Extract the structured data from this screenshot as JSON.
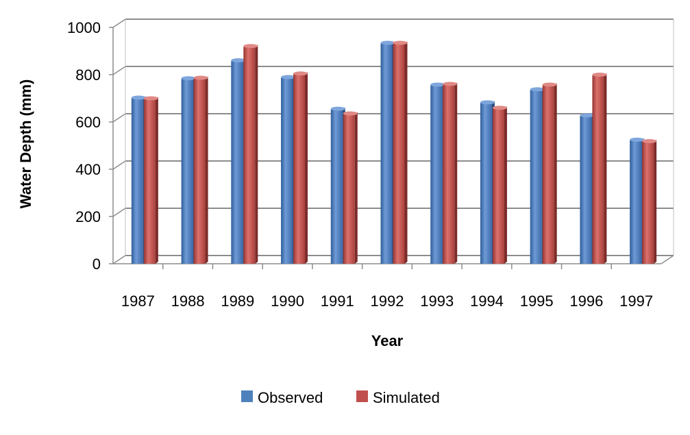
{
  "chart_data": {
    "type": "bar",
    "title": "",
    "xlabel": "Year",
    "ylabel": "Water Depth (mm)",
    "ylim": [
      0,
      1000
    ],
    "yticks": [
      0,
      200,
      400,
      600,
      800,
      1000
    ],
    "grid": true,
    "legend_position": "bottom",
    "categories": [
      "1987",
      "1988",
      "1989",
      "1990",
      "1991",
      "1992",
      "1993",
      "1994",
      "1995",
      "1996",
      "1997"
    ],
    "series": [
      {
        "name": "Observed",
        "color": "#4f81bd",
        "values": [
          700,
          782,
          858,
          787,
          653,
          932,
          755,
          680,
          735,
          625,
          522
        ]
      },
      {
        "name": "Simulated",
        "color": "#c0504d",
        "values": [
          697,
          784,
          918,
          802,
          633,
          932,
          758,
          657,
          755,
          797,
          516
        ]
      }
    ]
  }
}
